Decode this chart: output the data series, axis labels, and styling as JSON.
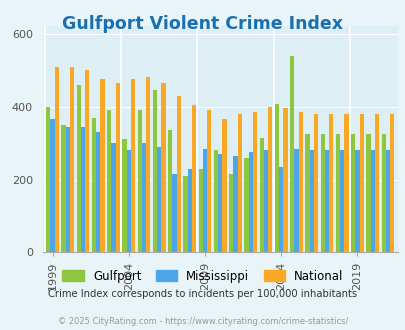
{
  "title": "Gulfport Violent Crime Index",
  "title_color": "#1a6faf",
  "subtitle": "Crime Index corresponds to incidents per 100,000 inhabitants",
  "footer": "© 2025 CityRating.com - https://www.cityrating.com/crime-statistics/",
  "years": [
    1999,
    2000,
    2001,
    2002,
    2003,
    2004,
    2005,
    2006,
    2007,
    2008,
    2009,
    2010,
    2011,
    2012,
    2013,
    2014,
    2015,
    2016,
    2017,
    2018,
    2019,
    2020,
    2021
  ],
  "gulfport": [
    400,
    350,
    460,
    370,
    390,
    310,
    390,
    445,
    335,
    210,
    230,
    280,
    215,
    260,
    315,
    408,
    540,
    325,
    325,
    325,
    325,
    325,
    325
  ],
  "mississippi": [
    365,
    345,
    345,
    330,
    300,
    280,
    300,
    290,
    215,
    230,
    285,
    270,
    265,
    275,
    280,
    235,
    285,
    280,
    280,
    280,
    280,
    280,
    280
  ],
  "national": [
    510,
    510,
    500,
    475,
    465,
    475,
    480,
    465,
    430,
    405,
    390,
    365,
    380,
    385,
    400,
    395,
    385,
    380,
    380,
    380,
    380,
    380,
    380
  ],
  "bar_colors": [
    "#8dc63f",
    "#4da6e8",
    "#f9a825"
  ],
  "bg_color": "#e8f4f8",
  "plot_bg": "#ddeef5",
  "ylim": [
    0,
    620
  ],
  "yticks": [
    0,
    200,
    400,
    600
  ],
  "xtick_years": [
    1999,
    2004,
    2009,
    2014,
    2019
  ],
  "legend_labels": [
    "Gulfport",
    "Mississippi",
    "National"
  ],
  "grid_color": "#ffffff"
}
